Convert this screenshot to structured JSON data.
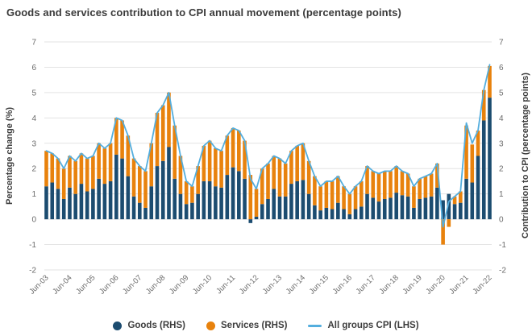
{
  "title": "Goods and services contribution to CPI annual movement (percentage points)",
  "left_axis": {
    "label": "Percentage change (%)"
  },
  "right_axis": {
    "label": "Contribution to CPI (percentage points)"
  },
  "legend": {
    "goods": "Goods (RHS)",
    "services": "Services (RHS)",
    "cpi": "All groups CPI (LHS)"
  },
  "colors": {
    "goods": "#1c4c70",
    "services": "#e8820d",
    "cpi_line": "#54aede",
    "grid": "#e3e3e3",
    "tick_text": "#6a6a6a"
  },
  "chart_data": {
    "type": "stacked_bar_with_line",
    "title": "Goods and services contribution to CPI annual movement (percentage points)",
    "ylabel_left": "Percentage change (%)",
    "ylabel_right": "Contribution to CPI (percentage points)",
    "ylim": [
      -2,
      7
    ],
    "yticks": [
      7,
      6,
      5,
      4,
      3,
      2,
      1,
      0,
      -1,
      -2
    ],
    "grid": true,
    "legend_position": "bottom",
    "x_tick_labels": [
      "Jun-03",
      "Jun-04",
      "Jun-05",
      "Jun-06",
      "Jun-07",
      "Jun-08",
      "Jun-09",
      "Jun-10",
      "Jun-11",
      "Jun-12",
      "Jun-13",
      "Jun-14",
      "Jun-15",
      "Jun-16",
      "Jun-17",
      "Jun-18",
      "Jun-19",
      "Jun-20",
      "Jun-21",
      "Jun-22"
    ],
    "x_tick_every": 4,
    "quarters": [
      "Jun-03",
      "Sep-03",
      "Dec-03",
      "Mar-04",
      "Jun-04",
      "Sep-04",
      "Dec-04",
      "Mar-05",
      "Jun-05",
      "Sep-05",
      "Dec-05",
      "Mar-06",
      "Jun-06",
      "Sep-06",
      "Dec-06",
      "Mar-07",
      "Jun-07",
      "Sep-07",
      "Dec-07",
      "Mar-08",
      "Jun-08",
      "Sep-08",
      "Dec-08",
      "Mar-09",
      "Jun-09",
      "Sep-09",
      "Dec-09",
      "Mar-10",
      "Jun-10",
      "Sep-10",
      "Dec-10",
      "Mar-11",
      "Jun-11",
      "Sep-11",
      "Dec-11",
      "Mar-12",
      "Jun-12",
      "Sep-12",
      "Dec-12",
      "Mar-13",
      "Jun-13",
      "Sep-13",
      "Dec-13",
      "Mar-14",
      "Jun-14",
      "Sep-14",
      "Dec-14",
      "Mar-15",
      "Jun-15",
      "Sep-15",
      "Dec-15",
      "Mar-16",
      "Jun-16",
      "Sep-16",
      "Dec-16",
      "Mar-17",
      "Jun-17",
      "Sep-17",
      "Dec-17",
      "Mar-18",
      "Jun-18",
      "Sep-18",
      "Dec-18",
      "Mar-19",
      "Jun-19",
      "Sep-19",
      "Dec-19",
      "Mar-20",
      "Jun-20",
      "Sep-20",
      "Dec-20",
      "Mar-21",
      "Jun-21",
      "Sep-21",
      "Dec-21",
      "Mar-22",
      "Jun-22"
    ],
    "series": [
      {
        "name": "Goods (RHS)",
        "axis": "right",
        "values": [
          1.3,
          1.45,
          1.2,
          0.8,
          1.25,
          1.0,
          1.4,
          1.1,
          1.2,
          1.6,
          1.4,
          1.5,
          2.55,
          2.4,
          1.7,
          0.9,
          0.65,
          0.45,
          1.3,
          2.1,
          2.3,
          2.85,
          1.6,
          1.0,
          0.6,
          0.65,
          1.0,
          1.5,
          1.5,
          1.3,
          1.25,
          1.75,
          2.05,
          1.9,
          1.6,
          -0.15,
          0.1,
          0.6,
          0.8,
          1.2,
          0.9,
          0.9,
          1.4,
          1.5,
          1.55,
          1.0,
          0.55,
          0.35,
          0.45,
          0.4,
          0.65,
          0.4,
          0.2,
          0.4,
          0.5,
          1.0,
          0.85,
          0.7,
          0.8,
          0.85,
          1.05,
          0.95,
          0.9,
          0.45,
          0.8,
          0.85,
          0.9,
          1.25,
          0.75,
          1.0,
          0.6,
          0.65,
          1.6,
          1.45,
          2.5,
          3.9,
          4.8
        ]
      },
      {
        "name": "Services (RHS)",
        "axis": "right",
        "values": [
          1.4,
          1.15,
          1.2,
          1.2,
          1.25,
          1.3,
          1.2,
          1.3,
          1.3,
          1.4,
          1.4,
          1.5,
          1.45,
          1.5,
          1.6,
          1.5,
          1.45,
          1.45,
          1.7,
          2.1,
          2.2,
          2.15,
          2.1,
          1.5,
          0.9,
          0.65,
          1.1,
          1.4,
          1.6,
          1.5,
          1.45,
          1.55,
          1.55,
          1.6,
          1.5,
          1.75,
          1.1,
          1.4,
          1.4,
          1.3,
          1.5,
          1.3,
          1.3,
          1.4,
          1.45,
          1.3,
          1.15,
          0.95,
          1.05,
          1.1,
          1.05,
          0.9,
          0.8,
          0.9,
          1.0,
          1.1,
          1.05,
          1.1,
          1.1,
          1.05,
          1.05,
          0.95,
          0.9,
          0.85,
          0.8,
          0.85,
          0.9,
          0.95,
          -1.0,
          -0.3,
          0.3,
          0.45,
          2.1,
          1.5,
          1.0,
          1.2,
          1.25
        ]
      }
    ],
    "line": {
      "name": "All groups CPI (LHS)",
      "axis": "left",
      "values": [
        2.7,
        2.6,
        2.4,
        2.0,
        2.5,
        2.3,
        2.6,
        2.4,
        2.5,
        3.0,
        2.8,
        3.0,
        4.0,
        3.9,
        3.3,
        2.4,
        2.1,
        1.9,
        3.0,
        4.2,
        4.5,
        5.0,
        3.7,
        2.5,
        1.5,
        1.3,
        2.1,
        2.9,
        3.1,
        2.8,
        2.7,
        3.3,
        3.6,
        3.5,
        3.1,
        1.6,
        1.2,
        2.0,
        2.2,
        2.5,
        2.4,
        2.2,
        2.7,
        2.9,
        3.0,
        2.3,
        1.7,
        1.3,
        1.5,
        1.5,
        1.7,
        1.3,
        1.0,
        1.3,
        1.5,
        2.1,
        1.9,
        1.8,
        1.9,
        1.9,
        2.1,
        1.9,
        1.8,
        1.3,
        1.6,
        1.7,
        1.8,
        2.2,
        -0.3,
        0.7,
        0.9,
        1.1,
        3.8,
        3.0,
        3.5,
        5.1,
        6.1
      ]
    }
  }
}
